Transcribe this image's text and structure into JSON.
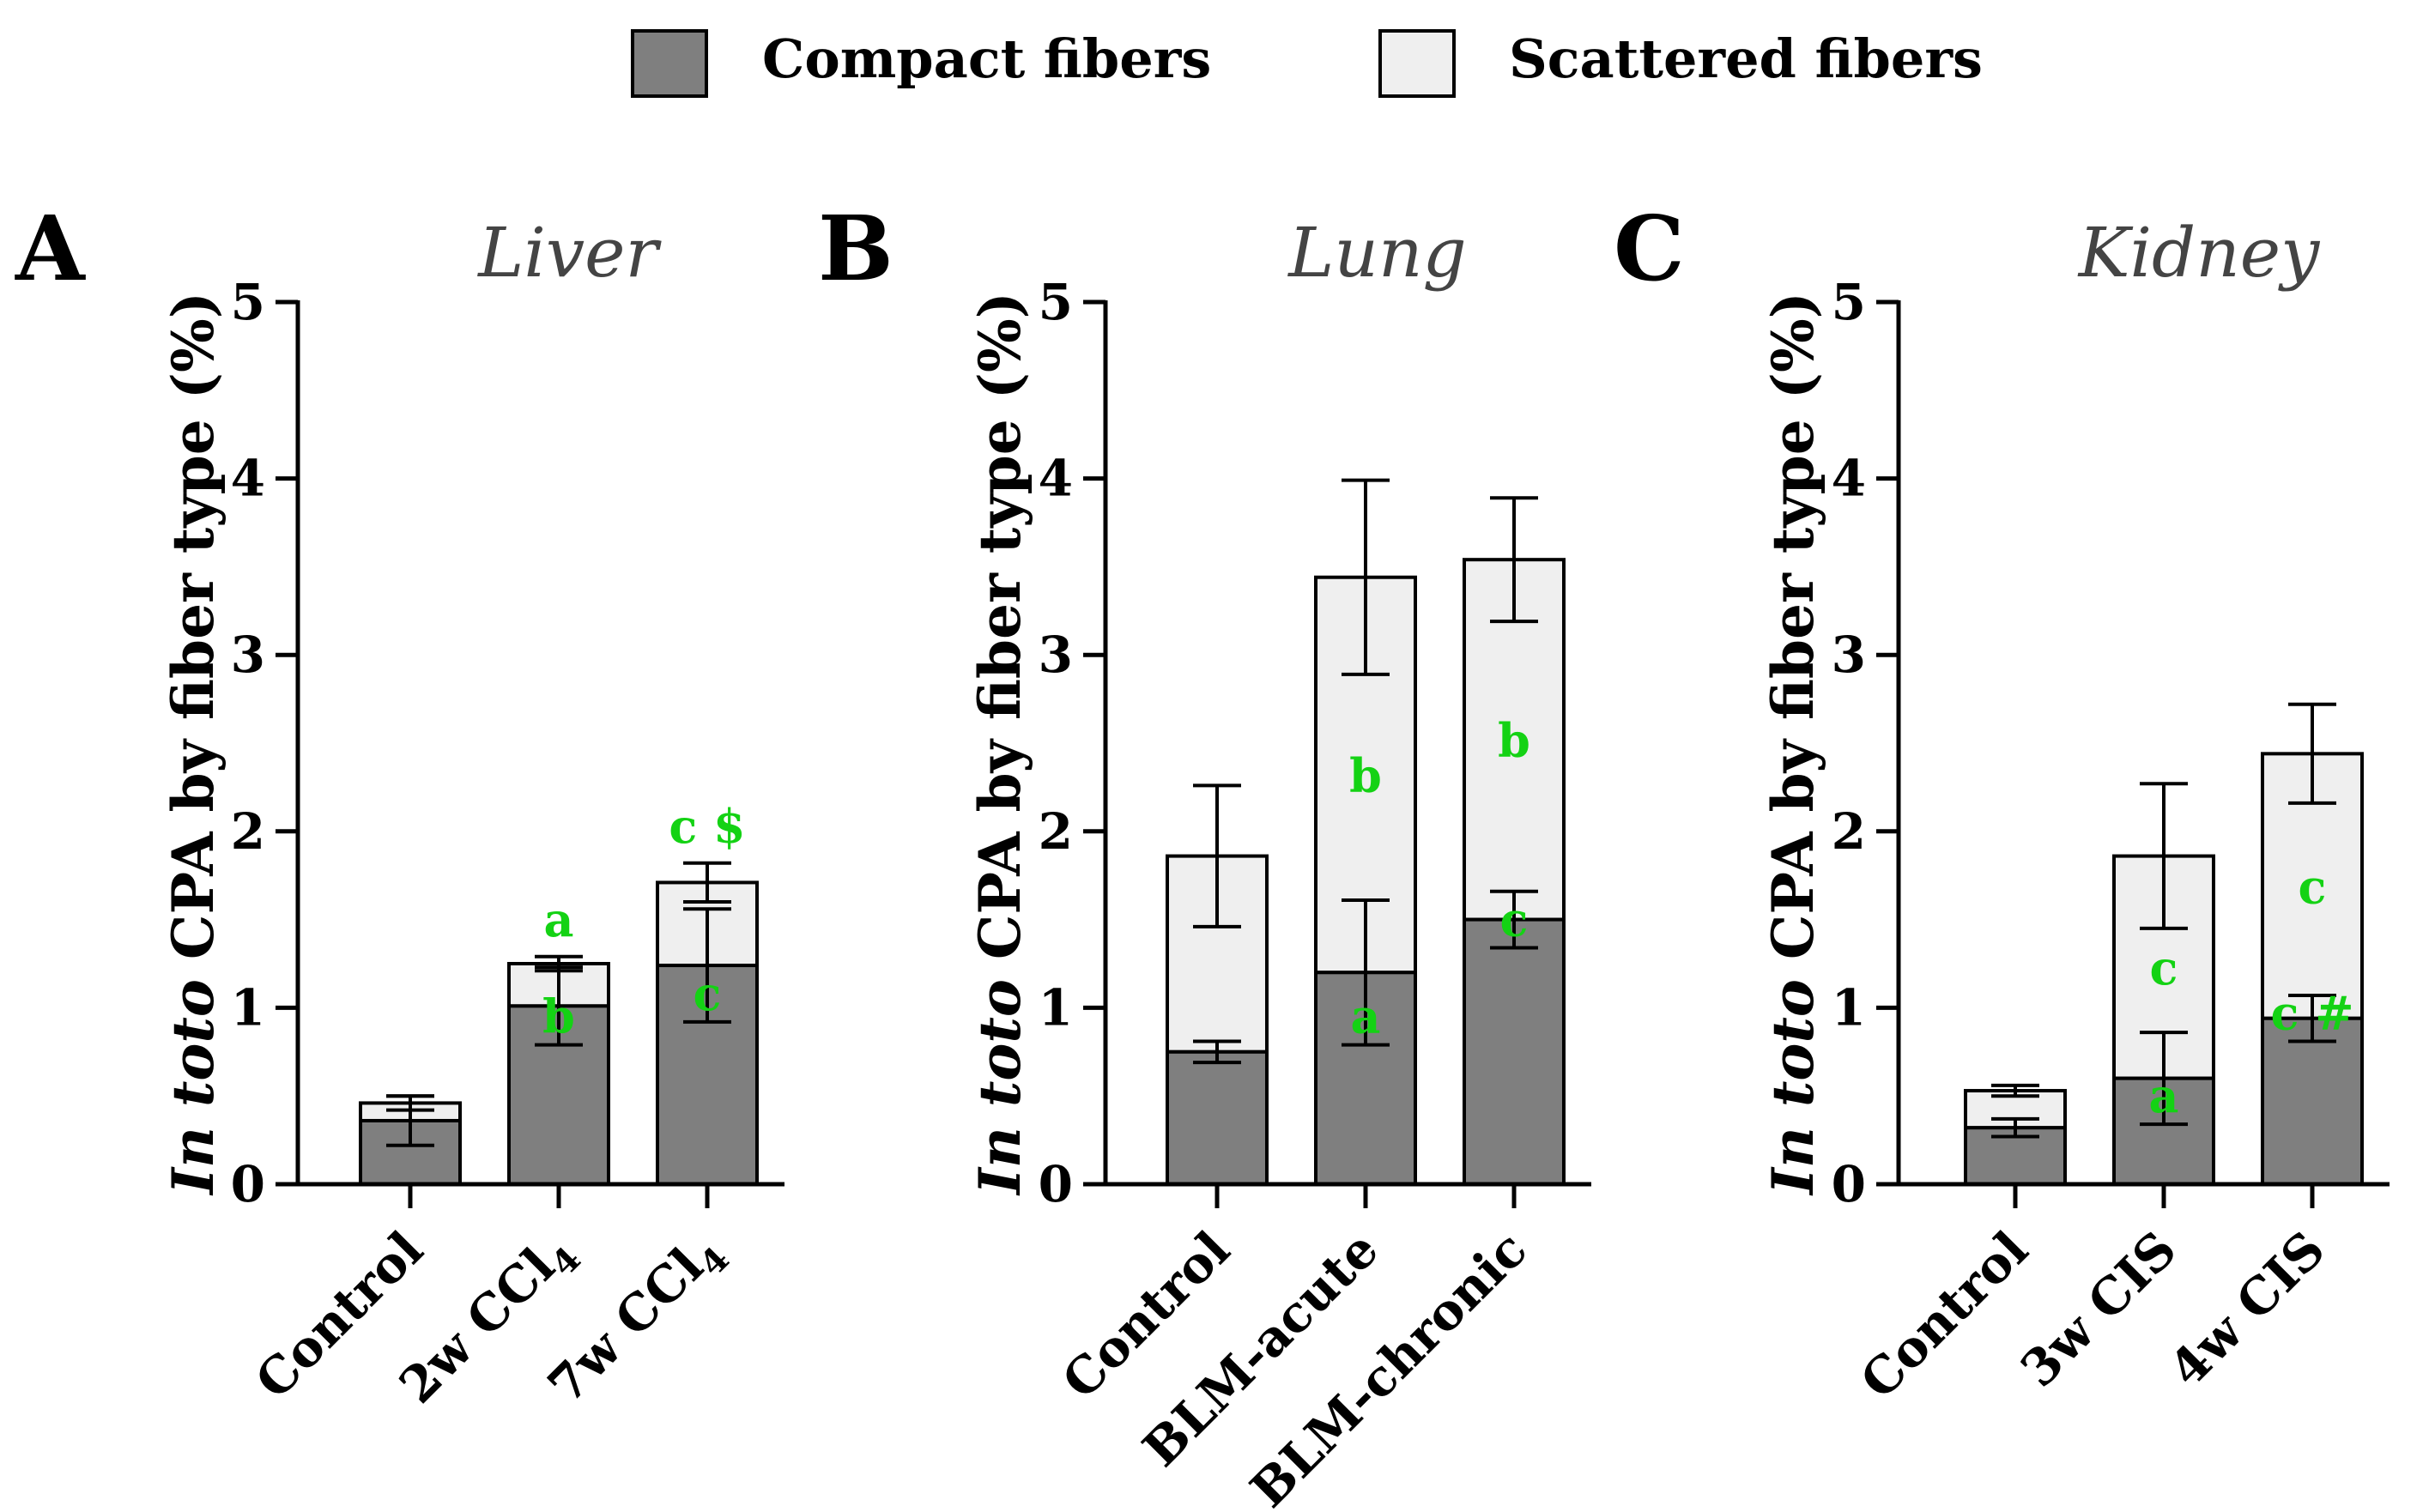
{
  "legend": {
    "compact_label": "Compact fibers",
    "scattered_label": "Scattered fibers",
    "compact_color": "#7f7f7f",
    "scattered_color": "#efefef"
  },
  "stats_color": "#14d214",
  "chart_data": [
    {
      "type": "bar",
      "panel_letter": "A",
      "title": "Liver",
      "ylabel_italic": "In toto",
      "ylabel_rest": " CPA by fiber type (%)",
      "ylim": [
        0,
        5
      ],
      "yticks": [
        "0",
        "1",
        "2",
        "3",
        "4",
        "5"
      ],
      "categories": [
        {
          "pre": "Control",
          "sub": "",
          "post": ""
        },
        {
          "pre": "2w CCl",
          "sub": "4",
          "post": ""
        },
        {
          "pre": "7w CCl",
          "sub": "4",
          "post": ""
        }
      ],
      "series": [
        {
          "name": "Compact fibers",
          "values": [
            0.36,
            1.01,
            1.24
          ],
          "error": [
            0.14,
            0.22,
            0.32
          ],
          "labels": [
            "",
            "b",
            "c"
          ]
        },
        {
          "name": "Scattered fibers",
          "values": [
            0.1,
            0.24,
            0.47
          ],
          "error": [
            0.04,
            0.04,
            0.11
          ],
          "labels": [
            "",
            "a",
            "c $"
          ]
        }
      ]
    },
    {
      "type": "bar",
      "panel_letter": "B",
      "title": "Lung",
      "ylabel_italic": "In toto",
      "ylabel_rest": " CPA by fiber type (%)",
      "ylim": [
        0,
        5
      ],
      "yticks": [
        "0",
        "1",
        "2",
        "3",
        "4",
        "5"
      ],
      "categories": [
        {
          "pre": "Control",
          "sub": "",
          "post": ""
        },
        {
          "pre": "BLM-acute",
          "sub": "",
          "post": ""
        },
        {
          "pre": "BLM-chronic",
          "sub": "",
          "post": ""
        }
      ],
      "series": [
        {
          "name": "Compact fibers",
          "values": [
            0.75,
            1.2,
            1.5
          ],
          "error": [
            0.06,
            0.41,
            0.16
          ],
          "labels": [
            "",
            "a",
            "c"
          ]
        },
        {
          "name": "Scattered fibers",
          "values": [
            1.11,
            2.24,
            2.04
          ],
          "error": [
            0.4,
            0.55,
            0.35
          ],
          "labels": [
            "",
            "b",
            "b"
          ]
        }
      ]
    },
    {
      "type": "bar",
      "panel_letter": "C",
      "title": "Kidney",
      "ylabel_italic": "In toto",
      "ylabel_rest": " CPA by fiber type (%)",
      "ylim": [
        0,
        5
      ],
      "yticks": [
        "0",
        "1",
        "2",
        "3",
        "4",
        "5"
      ],
      "categories": [
        {
          "pre": "Control",
          "sub": "",
          "post": ""
        },
        {
          "pre": "3w CIS",
          "sub": "",
          "post": ""
        },
        {
          "pre": "4w CIS",
          "sub": "",
          "post": ""
        }
      ],
      "series": [
        {
          "name": "Compact fibers",
          "values": [
            0.32,
            0.6,
            0.94
          ],
          "error": [
            0.05,
            0.26,
            0.13
          ],
          "labels": [
            "",
            "a",
            "c #"
          ]
        },
        {
          "name": "Scattered fibers",
          "values": [
            0.21,
            1.26,
            1.5
          ],
          "error": [
            0.03,
            0.41,
            0.28
          ],
          "labels": [
            "",
            "c",
            "c"
          ]
        }
      ]
    }
  ]
}
